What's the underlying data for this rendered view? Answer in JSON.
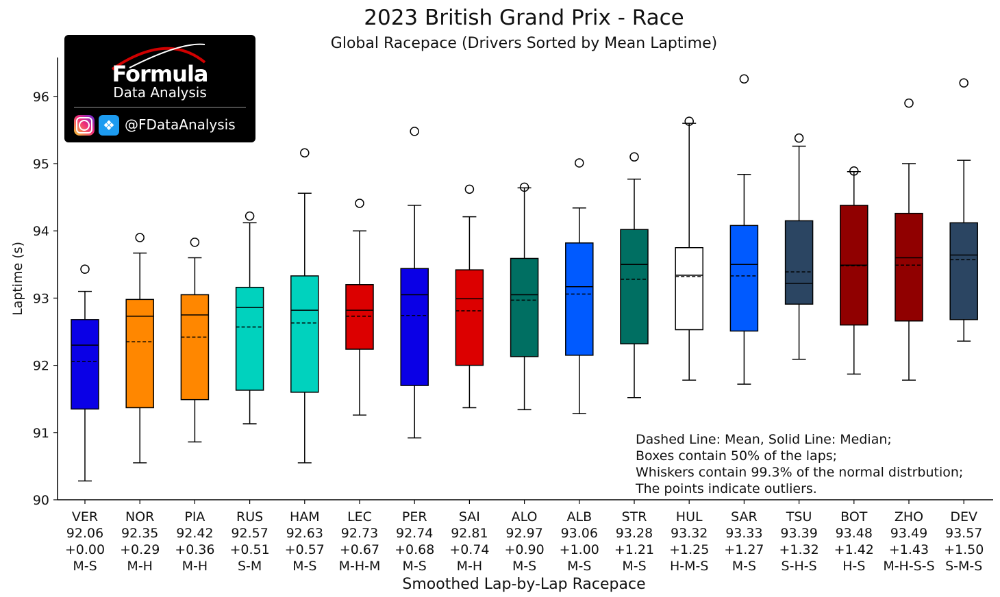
{
  "header": {
    "title": "2023 British Grand Prix - Race",
    "subtitle": "Global Racepace (Drivers Sorted by Mean Laptime)"
  },
  "logo": {
    "name": "Formula",
    "sub": "Data Analysis",
    "handle": "@FDataAnalysis",
    "icons": [
      "instagram-icon",
      "twitter-icon"
    ]
  },
  "notes": [
    "Dashed Line: Mean, Solid Line: Median;",
    "Boxes contain 50% of the laps;",
    "Whiskers contain 99.3% of the normal distrbution;",
    "The points indicate outliers."
  ],
  "chart_data": {
    "type": "box",
    "title": "2023 British Grand Prix - Race",
    "subtitle": "Global Racepace (Drivers Sorted by Mean Laptime)",
    "xlabel": "Smoothed Lap-by-Lap Racepace",
    "ylabel": "Laptime (s)",
    "ylim": [
      90,
      96.6
    ],
    "yticks": [
      90,
      91,
      92,
      93,
      94,
      95,
      96
    ],
    "grid": false,
    "drivers": [
      {
        "name": "VER",
        "mean_label": "92.06",
        "gap": "+0.00",
        "tyres": "M-S",
        "color": "#0a00e6",
        "q1": 91.35,
        "median": 92.3,
        "mean": 92.06,
        "q3": 92.68,
        "whisker_low": 90.28,
        "whisker_high": 93.1,
        "outliers": [
          93.43
        ]
      },
      {
        "name": "NOR",
        "mean_label": "92.35",
        "gap": "+0.29",
        "tyres": "M-H",
        "color": "#ff8700",
        "q1": 91.37,
        "median": 92.73,
        "mean": 92.35,
        "q3": 92.98,
        "whisker_low": 90.55,
        "whisker_high": 93.67,
        "outliers": [
          93.9
        ]
      },
      {
        "name": "PIA",
        "mean_label": "92.42",
        "gap": "+0.36",
        "tyres": "M-H",
        "color": "#ff8700",
        "q1": 91.49,
        "median": 92.75,
        "mean": 92.42,
        "q3": 93.05,
        "whisker_low": 90.86,
        "whisker_high": 93.6,
        "outliers": [
          93.83
        ]
      },
      {
        "name": "RUS",
        "mean_label": "92.57",
        "gap": "+0.51",
        "tyres": "S-M",
        "color": "#00d2be",
        "q1": 91.63,
        "median": 92.86,
        "mean": 92.57,
        "q3": 93.16,
        "whisker_low": 91.13,
        "whisker_high": 94.12,
        "outliers": [
          94.22
        ]
      },
      {
        "name": "HAM",
        "mean_label": "92.63",
        "gap": "+0.57",
        "tyres": "M-S",
        "color": "#00d2be",
        "q1": 91.6,
        "median": 92.82,
        "mean": 92.63,
        "q3": 93.33,
        "whisker_low": 90.55,
        "whisker_high": 94.56,
        "outliers": [
          95.16
        ]
      },
      {
        "name": "LEC",
        "mean_label": "92.73",
        "gap": "+0.67",
        "tyres": "M-H-M",
        "color": "#dc0000",
        "q1": 92.24,
        "median": 92.82,
        "mean": 92.73,
        "q3": 93.2,
        "whisker_low": 91.26,
        "whisker_high": 94.0,
        "outliers": [
          94.41
        ]
      },
      {
        "name": "PER",
        "mean_label": "92.74",
        "gap": "+0.68",
        "tyres": "M-S",
        "color": "#0a00e6",
        "q1": 91.7,
        "median": 93.05,
        "mean": 92.74,
        "q3": 93.44,
        "whisker_low": 90.92,
        "whisker_high": 94.38,
        "outliers": [
          95.48
        ]
      },
      {
        "name": "SAI",
        "mean_label": "92.81",
        "gap": "+0.74",
        "tyres": "M-H",
        "color": "#dc0000",
        "q1": 92.0,
        "median": 92.99,
        "mean": 92.81,
        "q3": 93.42,
        "whisker_low": 91.37,
        "whisker_high": 94.21,
        "outliers": [
          94.62
        ]
      },
      {
        "name": "ALO",
        "mean_label": "92.97",
        "gap": "+0.90",
        "tyres": "M-S",
        "color": "#006f62",
        "q1": 92.13,
        "median": 93.05,
        "mean": 92.97,
        "q3": 93.59,
        "whisker_low": 91.34,
        "whisker_high": 94.64,
        "outliers": [
          94.65
        ]
      },
      {
        "name": "ALB",
        "mean_label": "93.06",
        "gap": "+1.00",
        "tyres": "M-S",
        "color": "#005aff",
        "q1": 92.15,
        "median": 93.17,
        "mean": 93.06,
        "q3": 93.82,
        "whisker_low": 91.28,
        "whisker_high": 94.34,
        "outliers": [
          95.01
        ]
      },
      {
        "name": "STR",
        "mean_label": "93.28",
        "gap": "+1.21",
        "tyres": "M-S",
        "color": "#006f62",
        "q1": 92.32,
        "median": 93.5,
        "mean": 93.28,
        "q3": 94.02,
        "whisker_low": 91.52,
        "whisker_high": 94.77,
        "outliers": [
          95.1
        ]
      },
      {
        "name": "HUL",
        "mean_label": "93.32",
        "gap": "+1.25",
        "tyres": "H-M-S",
        "color": "#ffffff",
        "q1": 92.53,
        "median": 93.34,
        "mean": 93.32,
        "q3": 93.75,
        "whisker_low": 91.78,
        "whisker_high": 95.6,
        "outliers": [
          95.63
        ]
      },
      {
        "name": "SAR",
        "mean_label": "93.33",
        "gap": "+1.27",
        "tyres": "M-S",
        "color": "#005aff",
        "q1": 92.51,
        "median": 93.5,
        "mean": 93.33,
        "q3": 94.08,
        "whisker_low": 91.72,
        "whisker_high": 94.84,
        "outliers": [
          96.26
        ]
      },
      {
        "name": "TSU",
        "mean_label": "93.39",
        "gap": "+1.32",
        "tyres": "S-H-S",
        "color": "#2b4562",
        "q1": 92.91,
        "median": 93.22,
        "mean": 93.39,
        "q3": 94.15,
        "whisker_low": 92.09,
        "whisker_high": 95.26,
        "outliers": [
          95.38
        ]
      },
      {
        "name": "BOT",
        "mean_label": "93.48",
        "gap": "+1.42",
        "tyres": "H-S",
        "color": "#900000",
        "q1": 92.6,
        "median": 93.49,
        "mean": 93.48,
        "q3": 94.38,
        "whisker_low": 91.87,
        "whisker_high": 94.88,
        "outliers": [
          94.89
        ]
      },
      {
        "name": "ZHO",
        "mean_label": "93.49",
        "gap": "+1.43",
        "tyres": "M-H-S-S",
        "color": "#900000",
        "q1": 92.66,
        "median": 93.6,
        "mean": 93.49,
        "q3": 94.26,
        "whisker_low": 91.78,
        "whisker_high": 95.0,
        "outliers": [
          95.9
        ]
      },
      {
        "name": "DEV",
        "mean_label": "93.57",
        "gap": "+1.50",
        "tyres": "S-M-S",
        "color": "#2b4562",
        "q1": 92.68,
        "median": 93.64,
        "mean": 93.57,
        "q3": 94.12,
        "whisker_low": 92.36,
        "whisker_high": 95.05,
        "outliers": [
          96.2
        ]
      }
    ]
  }
}
